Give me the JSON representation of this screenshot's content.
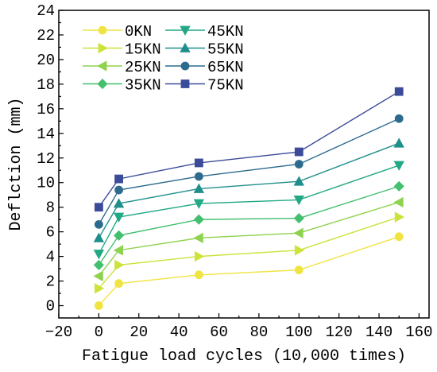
{
  "chart_data": {
    "type": "line",
    "title": "",
    "xlabel": "Fatigue load cycles (10,000 times)",
    "ylabel": "Deflction (mm)",
    "xlim": [
      -20,
      165
    ],
    "ylim": [
      -1,
      24
    ],
    "xticks": [
      -20,
      0,
      20,
      40,
      60,
      80,
      100,
      120,
      140,
      160
    ],
    "yticks": [
      0,
      2,
      4,
      6,
      8,
      10,
      12,
      14,
      16,
      18,
      20,
      22,
      24
    ],
    "grid": false,
    "legend_position": "top-left",
    "x": [
      0,
      10,
      50,
      100,
      150
    ],
    "series": [
      {
        "name": "0KN",
        "color": "#f0e442",
        "marker": "circle",
        "values": [
          0.0,
          1.8,
          2.5,
          2.9,
          5.6
        ]
      },
      {
        "name": "15KN",
        "color": "#cde23a",
        "marker": "triangle-right",
        "values": [
          1.4,
          3.3,
          4.0,
          4.5,
          7.2
        ]
      },
      {
        "name": "25KN",
        "color": "#8ed24e",
        "marker": "triangle-left",
        "values": [
          2.4,
          4.5,
          5.5,
          5.9,
          8.4
        ]
      },
      {
        "name": "35KN",
        "color": "#44bf70",
        "marker": "diamond",
        "values": [
          3.3,
          5.7,
          7.0,
          7.1,
          9.7
        ]
      },
      {
        "name": "45KN",
        "color": "#22a884",
        "marker": "triangle-down",
        "values": [
          4.2,
          7.2,
          8.3,
          8.6,
          11.4
        ]
      },
      {
        "name": "55KN",
        "color": "#208f8c",
        "marker": "triangle-up",
        "values": [
          5.5,
          8.3,
          9.5,
          10.1,
          13.2
        ]
      },
      {
        "name": "65KN",
        "color": "#2c6b8e",
        "marker": "circle",
        "values": [
          6.6,
          9.4,
          10.5,
          11.5,
          15.2
        ]
      },
      {
        "name": "75KN",
        "color": "#3b4b99",
        "marker": "square",
        "values": [
          8.0,
          10.3,
          11.6,
          12.5,
          17.4
        ]
      }
    ]
  }
}
